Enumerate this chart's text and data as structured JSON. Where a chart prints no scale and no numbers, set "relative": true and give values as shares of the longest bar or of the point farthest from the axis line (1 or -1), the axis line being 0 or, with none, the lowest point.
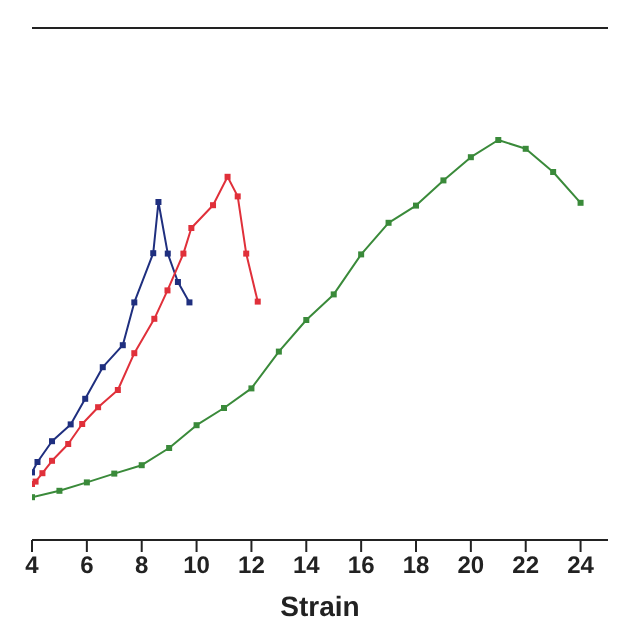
{
  "chart_data": {
    "type": "line",
    "relative": true,
    "xlabel": "Strain",
    "xlim": [
      4,
      25
    ],
    "xticks": [
      4,
      6,
      8,
      10,
      12,
      14,
      16,
      18,
      20,
      22,
      24
    ],
    "marker": "square",
    "grid": false,
    "legend": false,
    "series": [
      {
        "color": "#1f2f7f",
        "x": [
          4.0,
          4.2,
          4.73,
          5.41,
          5.94,
          6.58,
          7.31,
          7.73,
          8.42,
          8.61,
          8.95,
          9.32,
          9.74
        ],
        "values": [
          0.169,
          0.195,
          0.247,
          0.289,
          0.353,
          0.432,
          0.487,
          0.594,
          0.717,
          0.845,
          0.716,
          0.645,
          0.594
        ]
      },
      {
        "color": "#e0303a",
        "x": [
          4.0,
          4.13,
          4.38,
          4.73,
          5.32,
          5.83,
          6.41,
          7.13,
          7.73,
          8.46,
          8.94,
          9.52,
          9.81,
          10.6,
          11.13,
          11.5,
          11.81,
          12.23
        ],
        "values": [
          0.14,
          0.146,
          0.167,
          0.198,
          0.24,
          0.29,
          0.332,
          0.375,
          0.467,
          0.553,
          0.624,
          0.716,
          0.78,
          0.837,
          0.908,
          0.859,
          0.716,
          0.596
        ]
      },
      {
        "color": "#3a8a3a",
        "x": [
          4,
          5,
          6,
          7,
          8,
          9,
          10,
          11,
          12,
          13,
          14,
          15,
          16,
          17,
          18,
          19,
          20,
          21,
          22,
          23,
          24
        ],
        "values": [
          0.107,
          0.123,
          0.144,
          0.166,
          0.187,
          0.23,
          0.287,
          0.33,
          0.379,
          0.471,
          0.55,
          0.614,
          0.714,
          0.793,
          0.836,
          0.899,
          0.957,
          1,
          0.978,
          0.92,
          0.843
        ]
      }
    ]
  }
}
